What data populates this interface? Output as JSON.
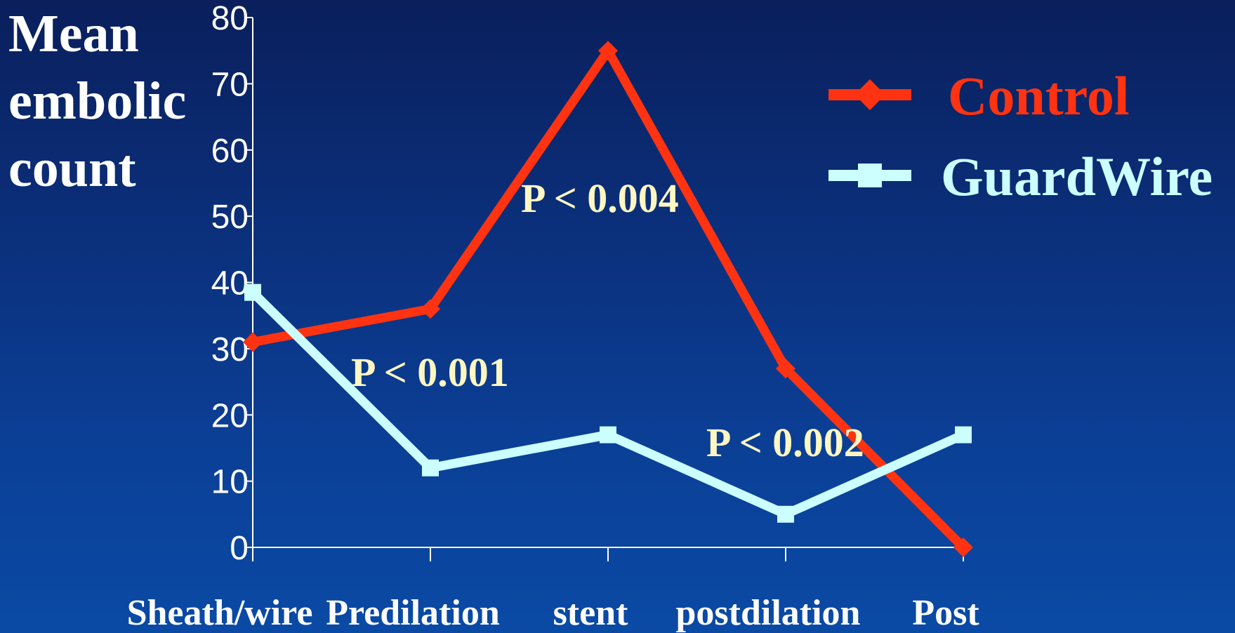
{
  "chart_data": {
    "type": "line",
    "ylabel_lines": [
      "Mean",
      "embolic",
      "count"
    ],
    "categories": [
      "Sheath/wire",
      "Predilation",
      "stent",
      "postdilation",
      "Post"
    ],
    "ylim": [
      0,
      80
    ],
    "yticks": [
      0,
      10,
      20,
      30,
      40,
      50,
      60,
      70,
      80
    ],
    "grid": false,
    "legend_position": "top-right",
    "series": [
      {
        "name": "Control",
        "color": "#ff3311",
        "marker": "diamond",
        "values": [
          31,
          36,
          75,
          27,
          0
        ]
      },
      {
        "name": "GuardWire",
        "color": "#ccffff",
        "marker": "square",
        "values": [
          38.5,
          12,
          17,
          5,
          17
        ]
      }
    ],
    "annotations": [
      {
        "text": "P < 0.001"
      },
      {
        "text": "P < 0.004"
      },
      {
        "text": "P < 0.002"
      }
    ]
  }
}
